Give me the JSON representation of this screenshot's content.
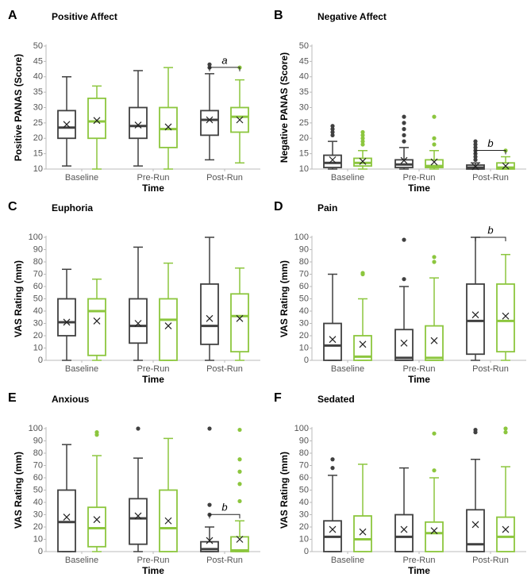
{
  "chart_data": [
    {
      "type": "box",
      "label": "A",
      "title": "Positive Affect",
      "y_label": "Positive PANAS (Score)",
      "x_label": "Time",
      "categories": [
        "Baseline",
        "Pre-Run",
        "Post-Run"
      ],
      "ylim": [
        10,
        50
      ],
      "yticks": [
        10,
        15,
        20,
        25,
        30,
        35,
        40,
        45,
        50
      ],
      "series": [
        {
          "color": "#404040",
          "min": [
            11,
            11,
            13
          ],
          "q1": [
            20,
            20,
            21
          ],
          "median": [
            23.5,
            24,
            26
          ],
          "q3": [
            29,
            30,
            29
          ],
          "max": [
            40,
            42,
            41
          ],
          "mean": [
            24.5,
            24.3,
            26
          ],
          "outliers": [
            [],
            [],
            [
              43,
              44
            ]
          ]
        },
        {
          "color": "#8cc63e",
          "min": [
            10,
            10,
            12
          ],
          "q1": [
            20,
            17,
            22
          ],
          "median": [
            25.5,
            23,
            27
          ],
          "q3": [
            33,
            30,
            30
          ],
          "max": [
            37,
            43,
            39
          ],
          "mean": [
            25.8,
            23.7,
            26
          ],
          "outliers": [
            [],
            [],
            [
              43
            ]
          ]
        }
      ],
      "annotations": [
        {
          "text": "a",
          "x": "Post-Run"
        }
      ]
    },
    {
      "type": "box",
      "label": "B",
      "title": "Negative Affect",
      "y_label": "Negative PANAS (Score)",
      "x_label": "Time",
      "categories": [
        "Baseline",
        "Pre-Run",
        "Post-Run"
      ],
      "ylim": [
        10,
        50
      ],
      "yticks": [
        10,
        15,
        20,
        25,
        30,
        35,
        40,
        45,
        50
      ],
      "series": [
        {
          "color": "#404040",
          "min": [
            10,
            10,
            10
          ],
          "q1": [
            10.5,
            10.5,
            10
          ],
          "median": [
            12,
            11.5,
            10.5
          ],
          "q3": [
            14.5,
            13,
            11.3
          ],
          "max": [
            19,
            17,
            12
          ],
          "mean": [
            13,
            12.8,
            10.8
          ],
          "outliers": [
            [
              21,
              22,
              23,
              24
            ],
            [
              19,
              21,
              23,
              25,
              27
            ],
            [
              13,
              14,
              15,
              16,
              17,
              18,
              19
            ]
          ]
        },
        {
          "color": "#8cc63e",
          "min": [
            10,
            10,
            10
          ],
          "q1": [
            11,
            10.5,
            10
          ],
          "median": [
            12,
            11,
            10.5
          ],
          "q3": [
            13.5,
            13,
            12
          ],
          "max": [
            16,
            16,
            14
          ],
          "mean": [
            12.5,
            12.3,
            11
          ],
          "outliers": [
            [
              18,
              19,
              20,
              21,
              22
            ],
            [
              18,
              20,
              27
            ],
            [
              16
            ]
          ]
        }
      ],
      "annotations": [
        {
          "text": "b",
          "x": "Post-Run"
        }
      ]
    },
    {
      "type": "box",
      "label": "C",
      "title": "Euphoria",
      "y_label": "VAS Rating (mm)",
      "x_label": "Time",
      "categories": [
        "Baseline",
        "Pre-Run",
        "Post-Run"
      ],
      "ylim": [
        0,
        100
      ],
      "yticks": [
        0,
        10,
        20,
        30,
        40,
        50,
        60,
        70,
        80,
        90,
        100
      ],
      "series": [
        {
          "color": "#404040",
          "min": [
            0,
            0,
            0
          ],
          "q1": [
            20,
            14,
            13
          ],
          "median": [
            31,
            28,
            28
          ],
          "q3": [
            50,
            50,
            62
          ],
          "max": [
            74,
            92,
            100
          ],
          "mean": [
            31,
            30,
            34
          ],
          "outliers": [
            [],
            [],
            []
          ]
        },
        {
          "color": "#8cc63e",
          "min": [
            0,
            0,
            0
          ],
          "q1": [
            4,
            0,
            7
          ],
          "median": [
            40,
            33,
            36
          ],
          "q3": [
            50,
            50,
            54
          ],
          "max": [
            66,
            79,
            75
          ],
          "mean": [
            32,
            28,
            34
          ],
          "outliers": [
            [],
            [],
            []
          ]
        }
      ],
      "annotations": []
    },
    {
      "type": "box",
      "label": "D",
      "title": "Pain",
      "y_label": "VAS Rating (mm)",
      "x_label": "Time",
      "categories": [
        "Baseline",
        "Pre-Run",
        "Post-Run"
      ],
      "ylim": [
        0,
        100
      ],
      "yticks": [
        0,
        10,
        20,
        30,
        40,
        50,
        60,
        70,
        80,
        90,
        100
      ],
      "series": [
        {
          "color": "#404040",
          "min": [
            0,
            0,
            0
          ],
          "q1": [
            0,
            0,
            5
          ],
          "median": [
            12,
            2,
            32
          ],
          "q3": [
            30,
            25,
            62
          ],
          "max": [
            70,
            60,
            100
          ],
          "mean": [
            17,
            14,
            37
          ],
          "outliers": [
            [],
            [
              66,
              98
            ],
            []
          ]
        },
        {
          "color": "#8cc63e",
          "min": [
            0,
            0,
            0
          ],
          "q1": [
            0,
            0,
            7
          ],
          "median": [
            3,
            2,
            32
          ],
          "q3": [
            20,
            28,
            62
          ],
          "max": [
            50,
            67,
            86
          ],
          "mean": [
            13,
            16,
            36
          ],
          "outliers": [
            [
              70,
              71
            ],
            [
              80,
              84
            ],
            []
          ]
        }
      ],
      "annotations": [
        {
          "text": "b",
          "x": "Post-Run"
        }
      ]
    },
    {
      "type": "box",
      "label": "E",
      "title": "Anxious",
      "y_label": "VAS Rating (mm)",
      "x_label": "Time",
      "categories": [
        "Baseline",
        "Pre-Run",
        "Post-Run"
      ],
      "ylim": [
        0,
        100
      ],
      "yticks": [
        0,
        10,
        20,
        30,
        40,
        50,
        60,
        70,
        80,
        90,
        100
      ],
      "series": [
        {
          "color": "#404040",
          "min": [
            0,
            0,
            0
          ],
          "q1": [
            0,
            6,
            0
          ],
          "median": [
            24,
            27,
            2
          ],
          "q3": [
            50,
            43,
            8
          ],
          "max": [
            87,
            76,
            20
          ],
          "mean": [
            28,
            29,
            9
          ],
          "outliers": [
            [],
            [
              100
            ],
            [
              30,
              38,
              100
            ]
          ]
        },
        {
          "color": "#8cc63e",
          "min": [
            0,
            0,
            0
          ],
          "q1": [
            4,
            0,
            0
          ],
          "median": [
            19,
            19,
            1
          ],
          "q3": [
            36,
            50,
            12
          ],
          "max": [
            78,
            92,
            25
          ],
          "mean": [
            26,
            25,
            10
          ],
          "outliers": [
            [
              95,
              97
            ],
            [],
            [
              41,
              55,
              65,
              75,
              99
            ]
          ]
        }
      ],
      "annotations": [
        {
          "text": "b",
          "x": "Post-Run"
        }
      ]
    },
    {
      "type": "box",
      "label": "F",
      "title": "Sedated",
      "y_label": "VAS Rating (mm)",
      "x_label": "Time",
      "categories": [
        "Baseline",
        "Pre-Run",
        "Post-Run"
      ],
      "ylim": [
        0,
        100
      ],
      "yticks": [
        0,
        10,
        20,
        30,
        40,
        50,
        60,
        70,
        80,
        90,
        100
      ],
      "series": [
        {
          "color": "#404040",
          "min": [
            0,
            0,
            0
          ],
          "q1": [
            0,
            0,
            0
          ],
          "median": [
            12,
            12,
            6
          ],
          "q3": [
            25,
            30,
            34
          ],
          "max": [
            62,
            68,
            75
          ],
          "mean": [
            18,
            18,
            22
          ],
          "outliers": [
            [
              68,
              75
            ],
            [],
            [
              97,
              99
            ]
          ]
        },
        {
          "color": "#8cc63e",
          "min": [
            0,
            0,
            0
          ],
          "q1": [
            0,
            0,
            0
          ],
          "median": [
            10,
            15,
            12
          ],
          "q3": [
            29,
            24,
            28
          ],
          "max": [
            71,
            60,
            69
          ],
          "mean": [
            16,
            17,
            18
          ],
          "outliers": [
            [],
            [
              66,
              96
            ],
            [
              97,
              100
            ]
          ]
        }
      ],
      "annotations": []
    }
  ]
}
